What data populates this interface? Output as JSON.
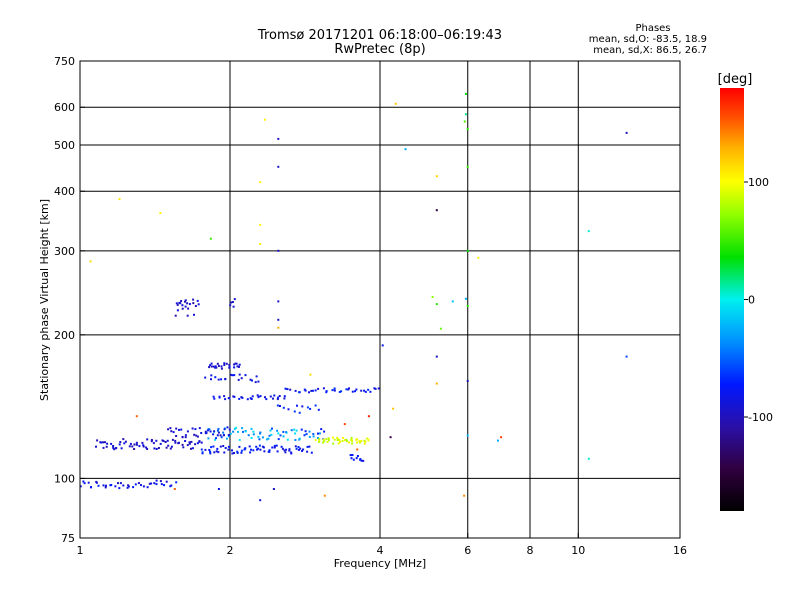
{
  "chart_data": {
    "type": "scatter",
    "title": "Tromsø 20171201 06:18:00–06:19:43",
    "subtitle": "RwPretec (8p)",
    "xlabel": "Frequency [MHz]",
    "ylabel": "Stationary phase Virtual Height [km]",
    "xscale": "log",
    "yscale": "log",
    "xlim": [
      1,
      16
    ],
    "ylim": [
      75,
      750
    ],
    "x_ticks": [
      1,
      2,
      4,
      6,
      8,
      10,
      16
    ],
    "x_tick_labels": [
      "1",
      "2",
      "4",
      "6",
      "8",
      "10",
      "16"
    ],
    "x_gridlines": [
      2,
      4,
      6,
      8,
      10
    ],
    "y_ticks": [
      75,
      100,
      200,
      300,
      400,
      500,
      600,
      750
    ],
    "y_tick_labels": [
      "75",
      "100",
      "200",
      "300",
      "400",
      "500",
      "600",
      "750"
    ],
    "y_gridlines": [
      100,
      200,
      300,
      400,
      500,
      600
    ],
    "grid": true,
    "stats": {
      "heading": "Phases",
      "line_o": "mean, sd,O: -83.5, 18.9",
      "line_x": "mean, sd,X:  86.5, 26.7"
    },
    "colorbar": {
      "label": "[deg]",
      "min": -180,
      "max": 180,
      "ticks": [
        -100,
        0,
        100
      ],
      "tick_labels": [
        "-100",
        "0",
        "100"
      ],
      "placement": "right"
    },
    "series": [
      {
        "traces": [
          {
            "x0": 1.0,
            "x1": 1.55,
            "y": 97,
            "phase": -100,
            "n": 40,
            "jy": 0.02,
            "jp": 14
          },
          {
            "x0": 1.08,
            "x1": 1.75,
            "y": 118,
            "phase": -110,
            "n": 70,
            "jy": 0.025,
            "jp": 12
          },
          {
            "x0": 1.75,
            "x1": 2.9,
            "y": 115,
            "phase": -95,
            "n": 70,
            "jy": 0.02,
            "jp": 12
          },
          {
            "x0": 1.8,
            "x1": 3.1,
            "y": 124,
            "phase": -60,
            "n": 70,
            "jy": 0.03,
            "jp": 35
          },
          {
            "x0": 1.5,
            "x1": 2.0,
            "y": 125,
            "phase": -105,
            "n": 35,
            "jy": 0.025,
            "jp": 10
          },
          {
            "x0": 3.0,
            "x1": 3.8,
            "y": 120,
            "phase": 80,
            "n": 45,
            "jy": 0.015,
            "jp": 25
          },
          {
            "x0": 3.5,
            "x1": 3.7,
            "y": 110,
            "phase": -95,
            "n": 10,
            "jy": 0.02,
            "jp": 8
          },
          {
            "x0": 1.8,
            "x1": 2.1,
            "y": 172,
            "phase": -105,
            "n": 25,
            "jy": 0.015,
            "jp": 10
          },
          {
            "x0": 1.8,
            "x1": 2.3,
            "y": 162,
            "phase": -100,
            "n": 20,
            "jy": 0.02,
            "jp": 10
          },
          {
            "x0": 1.85,
            "x1": 2.6,
            "y": 148,
            "phase": -100,
            "n": 30,
            "jy": 0.01,
            "jp": 10
          },
          {
            "x0": 2.6,
            "x1": 4.0,
            "y": 153,
            "phase": -95,
            "n": 35,
            "jy": 0.01,
            "jp": 12
          },
          {
            "x0": 2.5,
            "x1": 3.0,
            "y": 140,
            "phase": -90,
            "n": 12,
            "jy": 0.02,
            "jp": 15
          },
          {
            "x0": 1.55,
            "x1": 1.72,
            "y": 228,
            "phase": -110,
            "n": 22,
            "jy": 0.04,
            "jp": 10
          },
          {
            "x0": 2.0,
            "x1": 2.05,
            "y": 232,
            "phase": -110,
            "n": 5,
            "jy": 0.03,
            "jp": 8
          }
        ],
        "points": [
          {
            "x": 1.05,
            "y": 285,
            "phase": 110
          },
          {
            "x": 1.2,
            "y": 385,
            "phase": 105
          },
          {
            "x": 1.45,
            "y": 360,
            "phase": 100
          },
          {
            "x": 1.83,
            "y": 318,
            "phase": 25
          },
          {
            "x": 2.35,
            "y": 565,
            "phase": 100
          },
          {
            "x": 2.5,
            "y": 515,
            "phase": -110
          },
          {
            "x": 2.5,
            "y": 450,
            "phase": -110
          },
          {
            "x": 2.3,
            "y": 418,
            "phase": 95
          },
          {
            "x": 2.3,
            "y": 340,
            "phase": 100
          },
          {
            "x": 2.3,
            "y": 310,
            "phase": 100
          },
          {
            "x": 2.5,
            "y": 300,
            "phase": -110
          },
          {
            "x": 2.5,
            "y": 235,
            "phase": -110
          },
          {
            "x": 2.5,
            "y": 215,
            "phase": -110
          },
          {
            "x": 2.5,
            "y": 207,
            "phase": 130
          },
          {
            "x": 2.3,
            "y": 90,
            "phase": -105
          },
          {
            "x": 1.9,
            "y": 95,
            "phase": -100
          },
          {
            "x": 2.45,
            "y": 95,
            "phase": -110
          },
          {
            "x": 3.1,
            "y": 92,
            "phase": 140
          },
          {
            "x": 4.05,
            "y": 190,
            "phase": -100
          },
          {
            "x": 4.3,
            "y": 610,
            "phase": 120
          },
          {
            "x": 4.5,
            "y": 490,
            "phase": -50
          },
          {
            "x": 5.2,
            "y": 430,
            "phase": 115
          },
          {
            "x": 5.2,
            "y": 365,
            "phase": -150
          },
          {
            "x": 5.1,
            "y": 240,
            "phase": 50
          },
          {
            "x": 5.2,
            "y": 232,
            "phase": 20
          },
          {
            "x": 5.3,
            "y": 206,
            "phase": 40
          },
          {
            "x": 5.2,
            "y": 180,
            "phase": -110
          },
          {
            "x": 5.2,
            "y": 158,
            "phase": 130
          },
          {
            "x": 4.2,
            "y": 122,
            "phase": -150
          },
          {
            "x": 4.25,
            "y": 140,
            "phase": 120
          },
          {
            "x": 5.95,
            "y": 640,
            "phase": 10
          },
          {
            "x": 5.95,
            "y": 580,
            "phase": -10
          },
          {
            "x": 5.92,
            "y": 560,
            "phase": 30
          },
          {
            "x": 6.0,
            "y": 540,
            "phase": 20
          },
          {
            "x": 6.0,
            "y": 450,
            "phase": 25
          },
          {
            "x": 6.0,
            "y": 300,
            "phase": 10
          },
          {
            "x": 6.0,
            "y": 230,
            "phase": 20
          },
          {
            "x": 5.95,
            "y": 238,
            "phase": -50
          },
          {
            "x": 6.0,
            "y": 160,
            "phase": -110
          },
          {
            "x": 6.0,
            "y": 123,
            "phase": -40
          },
          {
            "x": 5.9,
            "y": 92,
            "phase": 140
          },
          {
            "x": 6.3,
            "y": 290,
            "phase": 100
          },
          {
            "x": 5.6,
            "y": 235,
            "phase": -40
          },
          {
            "x": 7.0,
            "y": 122,
            "phase": 160
          },
          {
            "x": 6.9,
            "y": 120,
            "phase": -50
          },
          {
            "x": 10.5,
            "y": 330,
            "phase": -20
          },
          {
            "x": 10.5,
            "y": 110,
            "phase": -20
          },
          {
            "x": 12.5,
            "y": 530,
            "phase": -110
          },
          {
            "x": 12.5,
            "y": 180,
            "phase": -80
          },
          {
            "x": 1.3,
            "y": 135,
            "phase": 150
          },
          {
            "x": 1.55,
            "y": 95,
            "phase": 150
          },
          {
            "x": 3.4,
            "y": 130,
            "phase": 160
          },
          {
            "x": 3.6,
            "y": 115,
            "phase": 150
          },
          {
            "x": 3.8,
            "y": 135,
            "phase": 170
          },
          {
            "x": 2.9,
            "y": 165,
            "phase": 110
          }
        ]
      }
    ]
  }
}
